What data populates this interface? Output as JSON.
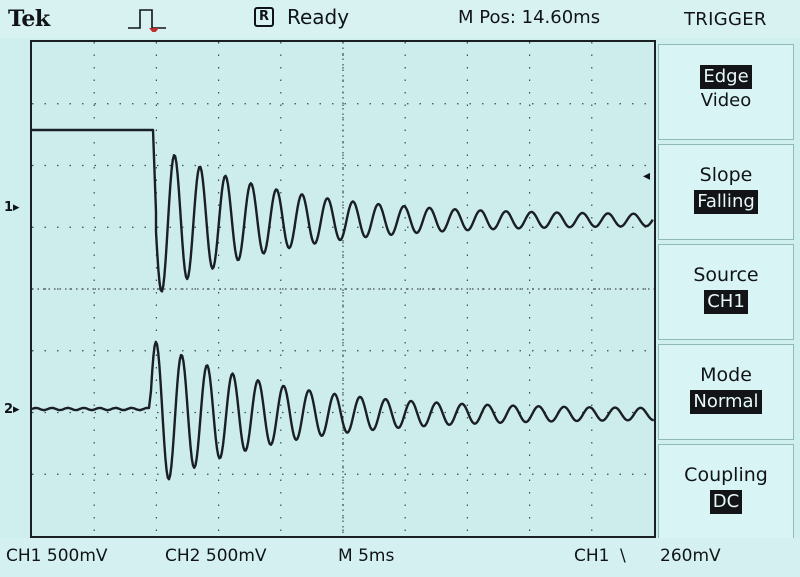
{
  "header": {
    "brand": "Tek",
    "status_icon": "R",
    "status": "Ready",
    "m_pos": "M Pos: 14.60ms",
    "menu_title": "TRIGGER"
  },
  "side_menu": {
    "type": {
      "option1": "Edge",
      "option2": "Video",
      "selected": "Edge"
    },
    "slope": {
      "label": "Slope",
      "value": "Falling"
    },
    "source": {
      "label": "Source",
      "value": "CH1"
    },
    "mode": {
      "label": "Mode",
      "value": "Normal"
    },
    "coupling": {
      "label": "Coupling",
      "value": "DC"
    }
  },
  "markers": {
    "ch1": "1",
    "ch2": "2"
  },
  "footer": {
    "ch1_scale": "CH1 500mV",
    "ch2_scale": "CH2 500mV",
    "timebase": "M 5ms",
    "trigger_source": "CH1",
    "trigger_slope_glyph": "\\",
    "trigger_level": "260mV"
  },
  "colors": {
    "screen_bg": "#cdeded",
    "trace": "#1a1f24",
    "grid": "#3d4a52"
  }
}
